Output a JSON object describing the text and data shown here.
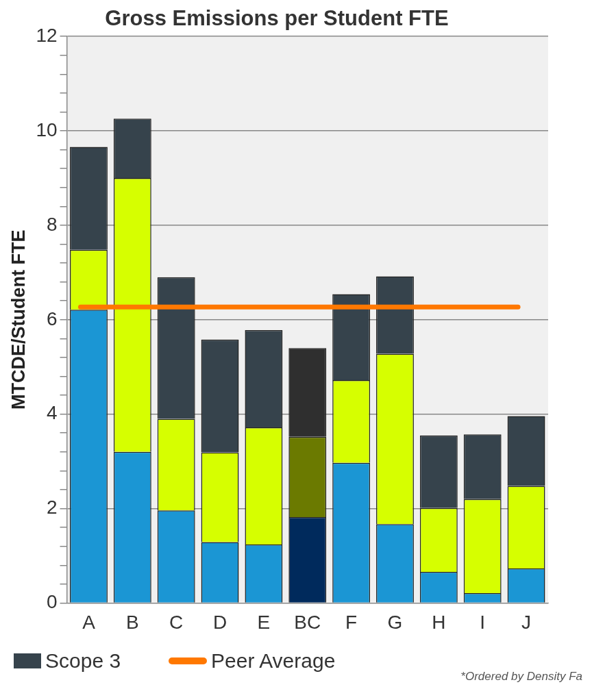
{
  "chart_data": {
    "type": "bar",
    "stacked": true,
    "title": "Gross Emissions per Student FTE",
    "ylabel": "MTCDE/Student FTE",
    "categories": [
      "A",
      "B",
      "C",
      "D",
      "E",
      "BC",
      "F",
      "G",
      "H",
      "I",
      "J"
    ],
    "series": [
      {
        "colors": [
          "#1b96d4",
          "#1b96d4",
          "#1b96d4",
          "#1b96d4",
          "#1b96d4",
          "#002a5c",
          "#1b96d4",
          "#1b96d4",
          "#1b96d4",
          "#1b96d4",
          "#1b96d4"
        ],
        "values": [
          6.21,
          3.2,
          1.96,
          1.29,
          1.24,
          1.82,
          2.97,
          1.67,
          0.66,
          0.21,
          0.73
        ]
      },
      {
        "colors": [
          "#d6ff00",
          "#d6ff00",
          "#d6ff00",
          "#d6ff00",
          "#d6ff00",
          "#6b7a00",
          "#d6ff00",
          "#d6ff00",
          "#d6ff00",
          "#d6ff00",
          "#d6ff00"
        ],
        "values": [
          1.27,
          5.8,
          1.94,
          1.9,
          2.48,
          1.7,
          1.75,
          3.61,
          1.35,
          1.99,
          1.75
        ]
      },
      {
        "name": "Scope 3",
        "color": "#36434c",
        "colors": [
          "#36434c",
          "#36434c",
          "#36434c",
          "#36434c",
          "#36434c",
          "#2f2f2f",
          "#36434c",
          "#36434c",
          "#36434c",
          "#36434c",
          "#36434c"
        ],
        "values": [
          2.18,
          1.26,
          3.0,
          2.39,
          2.06,
          1.88,
          1.82,
          1.64,
          1.54,
          1.37,
          1.48
        ]
      }
    ],
    "ylim": [
      0,
      12
    ],
    "yticks": [
      0,
      {
        "value": 0.4,
        "label": null
      },
      {
        "value": 0.8,
        "label": null
      },
      {
        "value": 1.2,
        "label": null
      },
      {
        "value": 1.6,
        "label": null
      },
      2,
      {
        "value": 2.4,
        "label": null
      },
      {
        "value": 2.8,
        "label": null
      },
      {
        "value": 3.2,
        "label": null
      },
      {
        "value": 3.6,
        "label": null
      },
      4,
      {
        "value": 4.4,
        "label": null
      },
      {
        "value": 4.8,
        "label": null
      },
      {
        "value": 5.2,
        "label": null
      },
      {
        "value": 5.6,
        "label": null
      },
      6,
      {
        "value": 6.4,
        "label": null
      },
      {
        "value": 6.8,
        "label": null
      },
      {
        "value": 7.2,
        "label": null
      },
      {
        "value": 7.6,
        "label": null
      },
      8,
      {
        "value": 8.4,
        "label": null
      },
      {
        "value": 8.8,
        "label": null
      },
      {
        "value": 9.2,
        "label": null
      },
      {
        "value": 9.6,
        "label": null
      },
      10,
      {
        "value": 10.4,
        "label": null
      },
      {
        "value": 10.8,
        "label": null
      },
      {
        "value": 11.2,
        "label": null
      },
      {
        "value": 11.6,
        "label": null
      },
      12
    ],
    "grid": "y",
    "legend": "bottom",
    "ref_lines": [
      {
        "axis": "y",
        "value": 6.27,
        "label": "Peer Average",
        "color": "#ff7800"
      }
    ],
    "annotations": [
      "*Ordered by Density Fa"
    ]
  }
}
